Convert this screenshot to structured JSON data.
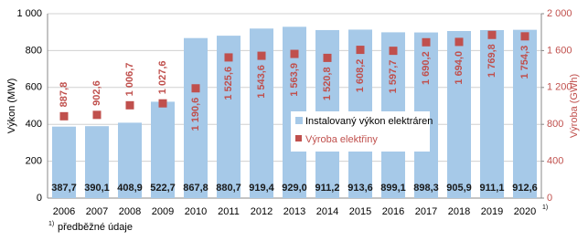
{
  "chart_data": {
    "type": "bar-marker",
    "categories": [
      "2006",
      "2007",
      "2008",
      "2009",
      "2010",
      "2011",
      "2012",
      "2013",
      "2014",
      "2015",
      "2016",
      "2017",
      "2018",
      "2019",
      "2020"
    ],
    "series": [
      {
        "name": "Instalovaný výkon elektráren",
        "color": "#a6c9e8",
        "values": [
          387.7,
          390.1,
          408.9,
          522.7,
          867.8,
          880.7,
          919.4,
          929.0,
          911.2,
          913.6,
          899.1,
          898.3,
          905.9,
          911.1,
          912.6
        ],
        "value_labels": [
          "387,7",
          "390,1",
          "408,9",
          "522,7",
          "867,8",
          "880,7",
          "919,4",
          "929,0",
          "911,2",
          "913,6",
          "899,1",
          "898,3",
          "905,9",
          "911,1",
          "912,6"
        ]
      },
      {
        "name": "Výroba elektřiny",
        "color": "#c0504d",
        "axis": "y2",
        "values": [
          887.8,
          902.6,
          1006.7,
          1027.6,
          1190.6,
          1525.6,
          1543.6,
          1563.9,
          1520.8,
          1608.2,
          1597.7,
          1690.2,
          1694.0,
          1769.8,
          1754.3
        ],
        "value_labels": [
          "887,8",
          "902,6",
          "1 006,7",
          "1 027,6",
          "1 190,6",
          "1 525,6",
          "1 543,6",
          "1 563,9",
          "1 520,8",
          "1 608,2",
          "1 597,7",
          "1 690,2",
          "1 694,0",
          "1 769,8",
          "1 754,3"
        ]
      }
    ],
    "ylabel": "Výkon (MW)",
    "y2label": "Výroba (GWh)",
    "ylim": [
      0,
      1000
    ],
    "yticks": [
      0,
      200,
      400,
      600,
      800,
      {
        "value": 1000,
        "label": "1 000"
      }
    ],
    "y2lim": [
      0,
      2000
    ],
    "y2ticks": [
      0,
      400,
      800,
      {
        "value": 1200,
        "label": "1 200"
      },
      {
        "value": 1600,
        "label": "1 600"
      },
      {
        "value": 2000,
        "label": "2 000"
      }
    ],
    "grid": true,
    "footnote_mark": "1)",
    "footnote": "předběžné údaje"
  }
}
